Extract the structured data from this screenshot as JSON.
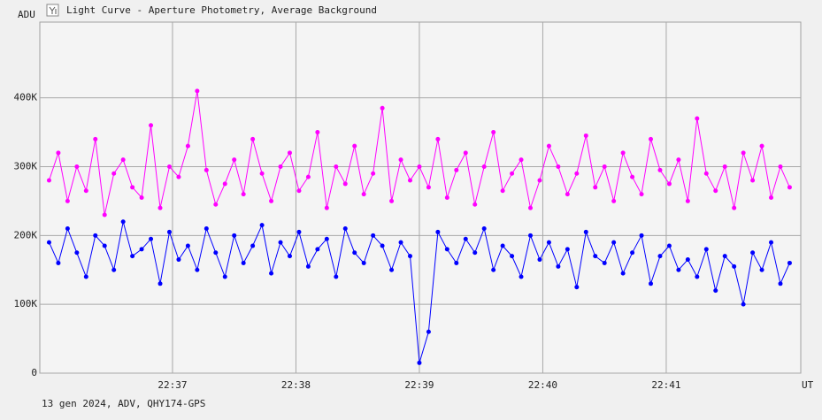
{
  "chart_data": {
    "type": "line",
    "title": "Light Curve - Aperture Photometry, Average Background",
    "y_label": "ADU",
    "x_label": "UT",
    "footer": "13 gen 2024, ADV, QHY174-GPS",
    "x": [
      1356,
      1356.075,
      1356.15,
      1356.225,
      1356.3,
      1356.375,
      1356.45,
      1356.525,
      1356.6,
      1356.675,
      1356.75,
      1356.825,
      1356.9,
      1356.975,
      1357.05,
      1357.125,
      1357.2,
      1357.275,
      1357.35,
      1357.425,
      1357.5,
      1357.575,
      1357.65,
      1357.725,
      1357.8,
      1357.875,
      1357.95,
      1358.025,
      1358.1,
      1358.175,
      1358.25,
      1358.325,
      1358.4,
      1358.475,
      1358.55,
      1358.625,
      1358.7,
      1358.775,
      1358.85,
      1358.925,
      1359,
      1359.075,
      1359.15,
      1359.225,
      1359.3,
      1359.375,
      1359.45,
      1359.525,
      1359.6,
      1359.675,
      1359.75,
      1359.825,
      1359.9,
      1359.975,
      1360.05,
      1360.125,
      1360.2,
      1360.275,
      1360.35,
      1360.425,
      1360.5,
      1360.575,
      1360.65,
      1360.725,
      1360.8,
      1360.875,
      1360.95,
      1361.025,
      1361.1,
      1361.175,
      1361.25,
      1361.325,
      1361.4,
      1361.475,
      1361.55,
      1361.625,
      1361.7,
      1361.775,
      1361.85,
      1361.925,
      1362
    ],
    "series": [
      {
        "color": "#ff00ff",
        "values": [
          280000,
          320000,
          250000,
          300000,
          265000,
          340000,
          230000,
          290000,
          310000,
          270000,
          255000,
          360000,
          240000,
          300000,
          285000,
          330000,
          410000,
          295000,
          245000,
          275000,
          310000,
          260000,
          340000,
          290000,
          250000,
          300000,
          320000,
          265000,
          285000,
          350000,
          240000,
          300000,
          275000,
          330000,
          260000,
          290000,
          385000,
          250000,
          310000,
          280000,
          300000,
          270000,
          340000,
          255000,
          295000,
          320000,
          245000,
          300000,
          350000,
          265000,
          290000,
          310000,
          240000,
          280000,
          330000,
          300000,
          260000,
          290000,
          345000,
          270000,
          300000,
          250000,
          320000,
          285000,
          260000,
          340000,
          295000,
          275000,
          310000,
          250000,
          370000,
          290000,
          265000,
          300000,
          240000,
          320000,
          280000,
          330000,
          255000,
          300000,
          270000
        ]
      },
      {
        "color": "#0000ff",
        "values": [
          190000,
          160000,
          210000,
          175000,
          140000,
          200000,
          185000,
          150000,
          220000,
          170000,
          180000,
          195000,
          130000,
          205000,
          165000,
          185000,
          150000,
          210000,
          175000,
          140000,
          200000,
          160000,
          185000,
          215000,
          145000,
          190000,
          170000,
          205000,
          155000,
          180000,
          195000,
          140000,
          210000,
          175000,
          160000,
          200000,
          185000,
          150000,
          190000,
          170000,
          15000,
          60000,
          205000,
          180000,
          160000,
          195000,
          175000,
          210000,
          150000,
          185000,
          170000,
          140000,
          200000,
          165000,
          190000,
          155000,
          180000,
          125000,
          205000,
          170000,
          160000,
          190000,
          145000,
          175000,
          200000,
          130000,
          170000,
          185000,
          150000,
          165000,
          140000,
          180000,
          120000,
          170000,
          155000,
          100000,
          175000,
          150000,
          190000,
          130000,
          160000
        ]
      }
    ],
    "xlim": [
      1355.925,
      1362.09
    ],
    "xticks": [
      {
        "value": 1357,
        "label": "22:37"
      },
      {
        "value": 1358,
        "label": "22:38"
      },
      {
        "value": 1359,
        "label": "22:39"
      },
      {
        "value": 1360,
        "label": "22:40"
      },
      {
        "value": 1361,
        "label": "22:41"
      }
    ],
    "ylim": [
      0,
      510000
    ],
    "yticks": [
      0,
      {
        "value": 100000,
        "label": "100K"
      },
      {
        "value": 200000,
        "label": "200K"
      },
      {
        "value": 300000,
        "label": "300K"
      },
      {
        "value": 400000,
        "label": "400K"
      }
    ],
    "grid": true
  }
}
